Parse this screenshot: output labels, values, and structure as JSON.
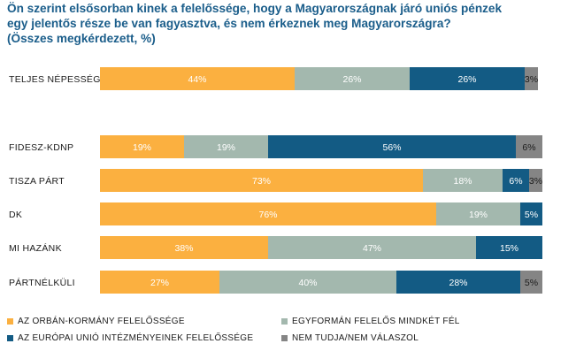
{
  "title": {
    "line1": "Ön szerint elsősorban kinek a felelőssége, hogy a Magyarországnak járó uniós pénzek",
    "line2": "egy jelentős része be van fagyasztva, és nem érkeznek meg Magyarországra?",
    "line3": "(Összes megkérdezett, %)"
  },
  "colors": {
    "orban": "#fbb040",
    "both": "#a3b8ae",
    "eu": "#135b84",
    "dk": "#858585"
  },
  "chart_data": {
    "type": "bar",
    "orientation": "horizontal",
    "stacked": true,
    "categories": [
      "TELJES NÉPESSÉG",
      "FIDESZ-KDNP",
      "TISZA PÁRT",
      "DK",
      "MI HAZÁNK",
      "PÁRTNÉLKÜLI"
    ],
    "series": [
      {
        "name": "AZ ORBÁN-KORMÁNY FELELŐSSÉGE",
        "color_key": "orban",
        "text_color": "#ffffff",
        "values": [
          44,
          19,
          73,
          76,
          38,
          27
        ]
      },
      {
        "name": "EGYFORMÁN FELELŐS MINDKÉT FÉL",
        "color_key": "both",
        "text_color": "#ffffff",
        "values": [
          26,
          19,
          18,
          19,
          47,
          40
        ]
      },
      {
        "name": "AZ EURÓPAI UNIÓ INTÉZMÉNYEINEK FELELŐSSÉGE",
        "color_key": "eu",
        "text_color": "#ffffff",
        "values": [
          26,
          56,
          6,
          5,
          15,
          28
        ]
      },
      {
        "name": "NEM TUDJA/NEM VÁLASZOL",
        "color_key": "dk",
        "text_color": "#1b1b1b",
        "values": [
          3,
          6,
          3,
          0,
          0,
          5
        ]
      }
    ],
    "value_suffix": "%",
    "xlim": [
      0,
      100
    ],
    "legend_position": "bottom"
  }
}
